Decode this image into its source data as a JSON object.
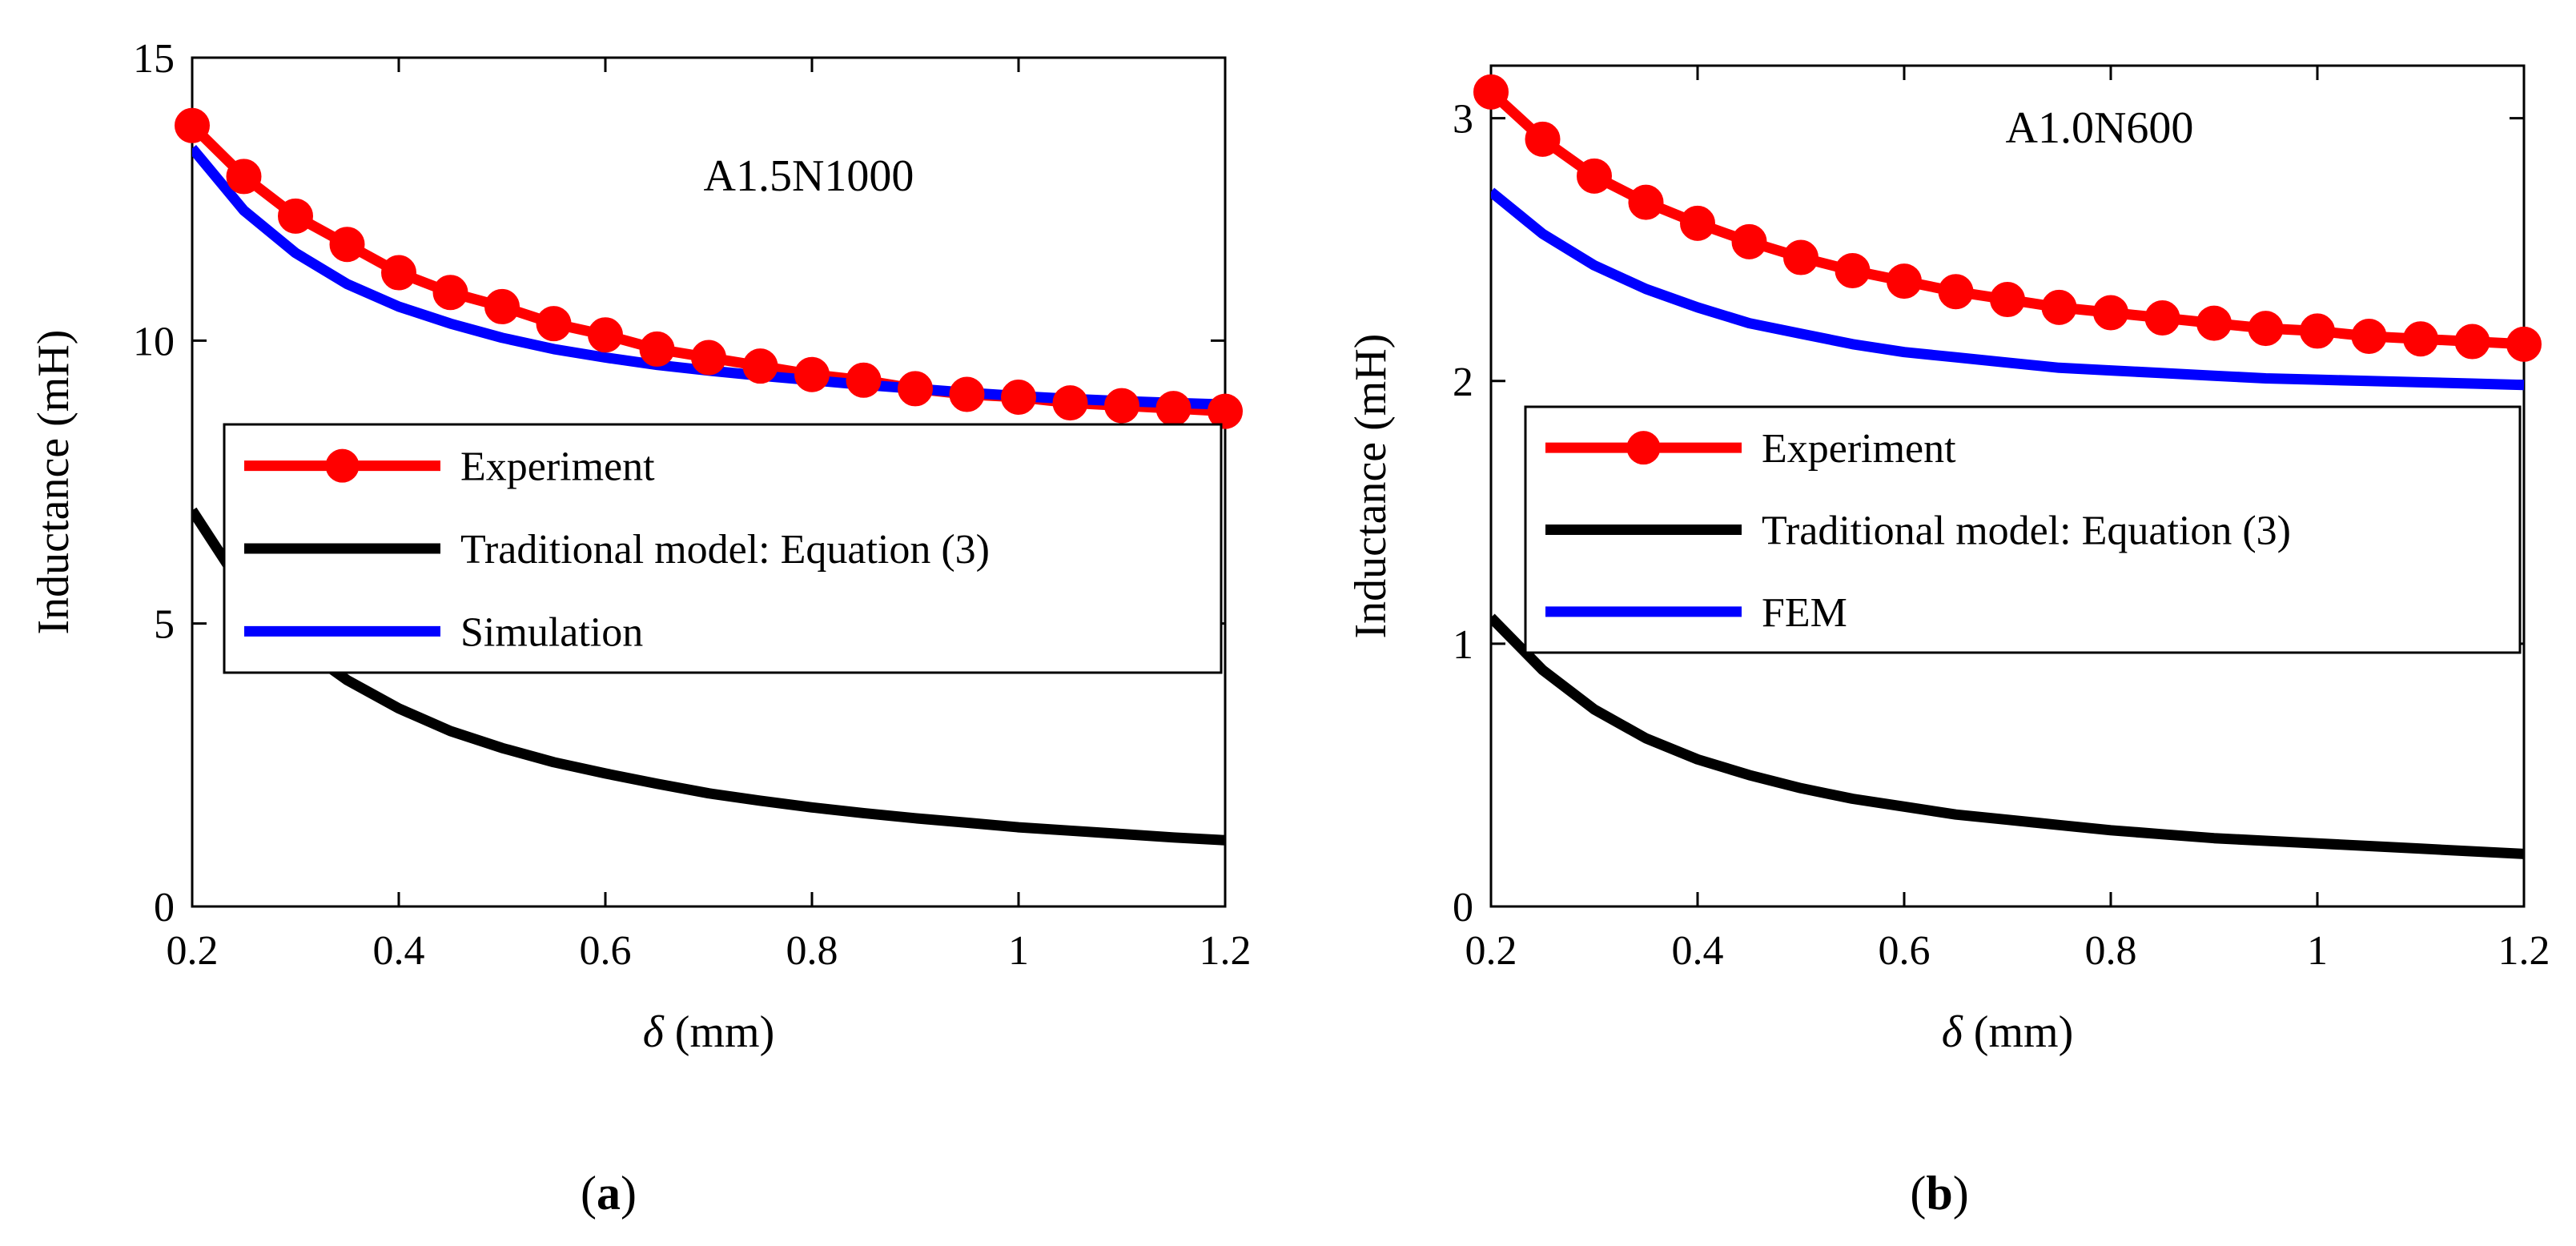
{
  "colors": {
    "experiment": "#ff0000",
    "traditional": "#000000",
    "simulation": "#0000ff",
    "axis": "#000000",
    "background": "#ffffff"
  },
  "chart_data": [
    {
      "type": "line",
      "panel_label": "a",
      "annotation": "A1.5N1000",
      "xlabel_symbol": "δ",
      "xlabel_unit": "(mm)",
      "ylabel": "Inductance  (mH)",
      "xlim": [
        0.2,
        1.2
      ],
      "ylim": [
        0,
        15
      ],
      "xticks": [
        0.2,
        0.4,
        0.6,
        0.8,
        1,
        1.2
      ],
      "xtick_labels": [
        "0.2",
        "0.4",
        "0.6",
        "0.8",
        "1",
        "1.2"
      ],
      "yticks": [
        0,
        5,
        10,
        15
      ],
      "ytick_labels": [
        "0",
        "5",
        "10",
        "15"
      ],
      "grid": false,
      "legend_placement": "center-right",
      "series": [
        {
          "name": "Experiment",
          "color": "#ff0000",
          "marker": "circle",
          "x": [
            0.2,
            0.25,
            0.3,
            0.35,
            0.4,
            0.45,
            0.5,
            0.55,
            0.6,
            0.65,
            0.7,
            0.75,
            0.8,
            0.85,
            0.9,
            0.95,
            1.0,
            1.05,
            1.1,
            1.15,
            1.2
          ],
          "y": [
            13.8,
            12.9,
            12.2,
            11.7,
            11.2,
            10.85,
            10.6,
            10.3,
            10.1,
            9.85,
            9.7,
            9.55,
            9.4,
            9.3,
            9.15,
            9.05,
            9.0,
            8.9,
            8.85,
            8.8,
            8.75
          ]
        },
        {
          "name": "Traditional model: Equation (3)",
          "color": "#000000",
          "marker": "none",
          "x": [
            0.2,
            0.25,
            0.3,
            0.35,
            0.4,
            0.45,
            0.5,
            0.55,
            0.6,
            0.65,
            0.7,
            0.75,
            0.8,
            0.85,
            0.9,
            0.95,
            1.0,
            1.05,
            1.1,
            1.15,
            1.2
          ],
          "y": [
            7.0,
            5.6,
            4.65,
            4.0,
            3.5,
            3.1,
            2.8,
            2.55,
            2.35,
            2.17,
            2.0,
            1.87,
            1.75,
            1.65,
            1.56,
            1.48,
            1.4,
            1.34,
            1.28,
            1.22,
            1.17
          ]
        },
        {
          "name": "Simulation",
          "color": "#0000ff",
          "marker": "none",
          "x": [
            0.2,
            0.25,
            0.3,
            0.35,
            0.4,
            0.45,
            0.5,
            0.55,
            0.6,
            0.65,
            0.7,
            0.75,
            0.8,
            0.85,
            0.9,
            0.95,
            1.0,
            1.05,
            1.1,
            1.15,
            1.2
          ],
          "y": [
            13.4,
            12.3,
            11.55,
            11.0,
            10.6,
            10.3,
            10.05,
            9.85,
            9.7,
            9.57,
            9.47,
            9.38,
            9.3,
            9.22,
            9.15,
            9.08,
            9.02,
            8.97,
            8.93,
            8.9,
            8.87
          ]
        }
      ]
    },
    {
      "type": "line",
      "panel_label": "b",
      "annotation": "A1.0N600",
      "xlabel_symbol": "δ",
      "xlabel_unit": "(mm)",
      "ylabel": "Inductance  (mH)",
      "xlim": [
        0.2,
        1.2
      ],
      "ylim": [
        0,
        3.2
      ],
      "xticks": [
        0.2,
        0.4,
        0.6,
        0.8,
        1,
        1.2
      ],
      "xtick_labels": [
        "0.2",
        "0.4",
        "0.6",
        "0.8",
        "1",
        "1.2"
      ],
      "yticks": [
        0,
        1,
        2,
        3
      ],
      "ytick_labels": [
        "0",
        "1",
        "2",
        "3"
      ],
      "grid": false,
      "legend_placement": "center-right",
      "series": [
        {
          "name": "Experiment",
          "color": "#ff0000",
          "marker": "circle",
          "x": [
            0.2,
            0.25,
            0.3,
            0.35,
            0.4,
            0.45,
            0.5,
            0.55,
            0.6,
            0.65,
            0.7,
            0.75,
            0.8,
            0.85,
            0.9,
            0.95,
            1.0,
            1.05,
            1.1,
            1.15,
            1.2
          ],
          "y": [
            3.1,
            2.92,
            2.78,
            2.68,
            2.6,
            2.53,
            2.47,
            2.42,
            2.38,
            2.34,
            2.31,
            2.28,
            2.26,
            2.24,
            2.22,
            2.2,
            2.19,
            2.17,
            2.16,
            2.15,
            2.14
          ]
        },
        {
          "name": "Traditional model: Equation (3)",
          "color": "#000000",
          "marker": "none",
          "x": [
            0.2,
            0.25,
            0.3,
            0.35,
            0.4,
            0.45,
            0.5,
            0.55,
            0.6,
            0.65,
            0.7,
            0.75,
            0.8,
            0.85,
            0.9,
            0.95,
            1.0,
            1.05,
            1.1,
            1.15,
            1.2
          ],
          "y": [
            1.1,
            0.9,
            0.75,
            0.64,
            0.56,
            0.5,
            0.45,
            0.41,
            0.38,
            0.35,
            0.33,
            0.31,
            0.29,
            0.275,
            0.26,
            0.25,
            0.24,
            0.23,
            0.22,
            0.21,
            0.2
          ]
        },
        {
          "name": "FEM",
          "color": "#0000ff",
          "marker": "none",
          "x": [
            0.2,
            0.25,
            0.3,
            0.35,
            0.4,
            0.45,
            0.5,
            0.55,
            0.6,
            0.65,
            0.7,
            0.75,
            0.8,
            0.85,
            0.9,
            0.95,
            1.0,
            1.05,
            1.1,
            1.15,
            1.2
          ],
          "y": [
            2.72,
            2.56,
            2.44,
            2.35,
            2.28,
            2.22,
            2.18,
            2.14,
            2.11,
            2.09,
            2.07,
            2.05,
            2.04,
            2.03,
            2.02,
            2.01,
            2.005,
            2.0,
            1.995,
            1.99,
            1.985
          ]
        }
      ]
    }
  ]
}
